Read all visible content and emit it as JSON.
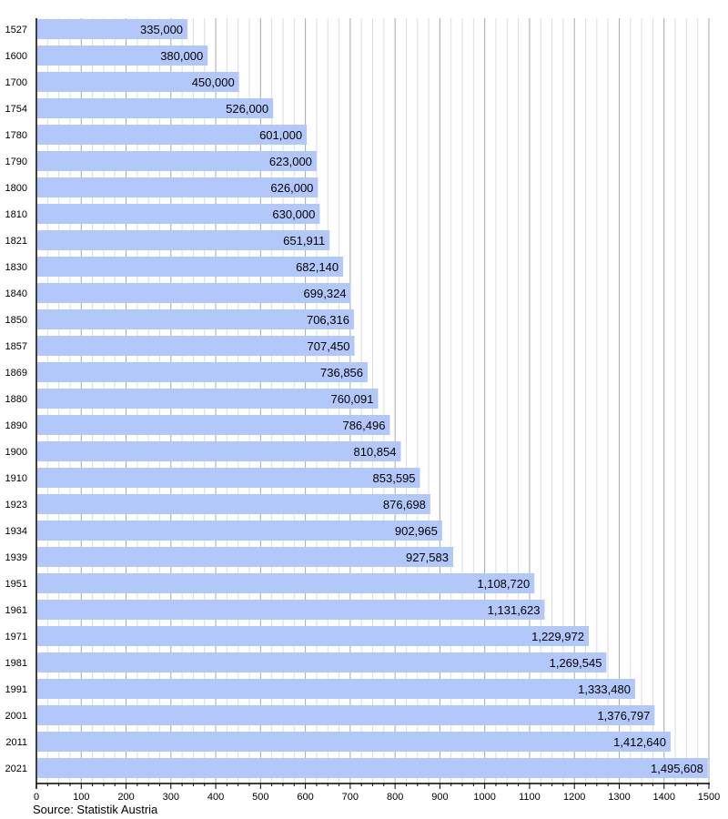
{
  "chart_data": {
    "type": "bar",
    "orientation": "horizontal",
    "categories": [
      "1527",
      "1600",
      "1700",
      "1754",
      "1780",
      "1790",
      "1800",
      "1810",
      "1821",
      "1830",
      "1840",
      "1850",
      "1857",
      "1869",
      "1880",
      "1890",
      "1900",
      "1910",
      "1923",
      "1934",
      "1939",
      "1951",
      "1961",
      "1971",
      "1981",
      "1991",
      "2001",
      "2011",
      "2021"
    ],
    "values": [
      335000,
      380000,
      450000,
      526000,
      601000,
      623000,
      626000,
      630000,
      651911,
      682140,
      699324,
      706316,
      707450,
      736856,
      760091,
      786496,
      810854,
      853595,
      876698,
      902965,
      927583,
      1108720,
      1131623,
      1229972,
      1269545,
      1333480,
      1376797,
      1412640,
      1495608
    ],
    "value_labels": [
      "335,000",
      "380,000",
      "450,000",
      "526,000",
      "601,000",
      "623,000",
      "626,000",
      "630,000",
      "651,911",
      "682,140",
      "699,324",
      "706,316",
      "707,450",
      "736,856",
      "760,091",
      "786,496",
      "810,854",
      "853,595",
      "876,698",
      "902,965",
      "927,583",
      "1,108,720",
      "1,131,623",
      "1,229,972",
      "1,269,545",
      "1,333,480",
      "1,376,797",
      "1,412,640",
      "1,495,608"
    ],
    "x_ticks": [
      "0",
      "100",
      "200",
      "300",
      "400",
      "500",
      "600",
      "700",
      "800",
      "900",
      "1000",
      "1100",
      "1200",
      "1300",
      "1400",
      "1500"
    ],
    "x_unit_divisor": 1000,
    "xlim": [
      0,
      1500
    ],
    "grid": true,
    "bar_color": "#b3c8fa",
    "source": "Source: Statistik Austria"
  }
}
